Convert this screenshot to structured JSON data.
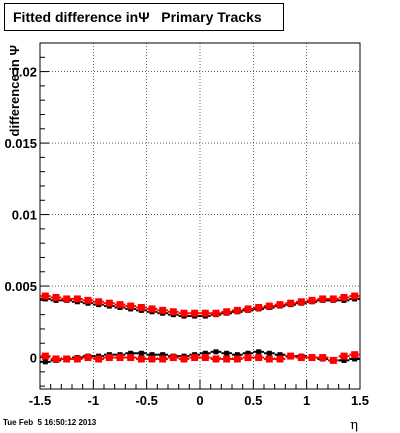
{
  "chart_data": {
    "type": "scatter",
    "title": "Fitted difference inΨ   Primary Tracks",
    "ylabel": "difference in Ψ",
    "xlabel": "η",
    "xlim": [
      -1.5,
      1.5
    ],
    "ylim": [
      -0.0022,
      0.022
    ],
    "xticks": [
      "-1.5",
      "-1",
      "-0.5",
      "0",
      "0.5",
      "1",
      "1.5"
    ],
    "xtick_values": [
      -1.5,
      -1,
      -0.5,
      0,
      0.5,
      1,
      1.5
    ],
    "yticks": [
      "0",
      "0.005",
      "0.01",
      "0.015",
      "0.02"
    ],
    "ytick_values": [
      0,
      0.005,
      0.01,
      0.015,
      0.02
    ],
    "grid": true,
    "series": [
      {
        "color": "#000000",
        "marker": "square-small",
        "x": [
          -1.45,
          -1.35,
          -1.25,
          -1.15,
          -1.05,
          -0.95,
          -0.85,
          -0.75,
          -0.65,
          -0.55,
          -0.45,
          -0.35,
          -0.25,
          -0.15,
          -0.05,
          0.05,
          0.15,
          0.25,
          0.35,
          0.45,
          0.55,
          0.65,
          0.75,
          0.85,
          0.95,
          1.05,
          1.15,
          1.25,
          1.35,
          1.45
        ],
        "y": [
          0.0041,
          0.004,
          0.004,
          0.0039,
          0.0038,
          0.0037,
          0.0036,
          0.0035,
          0.0034,
          0.0033,
          0.0032,
          0.0031,
          0.003,
          0.0029,
          0.0029,
          0.0029,
          0.003,
          0.0031,
          0.0032,
          0.0033,
          0.0034,
          0.0035,
          0.0036,
          0.0037,
          0.0038,
          0.0039,
          0.004,
          0.004,
          0.004,
          0.0041
        ]
      },
      {
        "color": "#ff0000",
        "marker": "square",
        "x": [
          -1.45,
          -1.35,
          -1.25,
          -1.15,
          -1.05,
          -0.95,
          -0.85,
          -0.75,
          -0.65,
          -0.55,
          -0.45,
          -0.35,
          -0.25,
          -0.15,
          -0.05,
          0.05,
          0.15,
          0.25,
          0.35,
          0.45,
          0.55,
          0.65,
          0.75,
          0.85,
          0.95,
          1.05,
          1.15,
          1.25,
          1.35,
          1.45
        ],
        "y": [
          0.0043,
          0.0042,
          0.0041,
          0.0041,
          0.004,
          0.0039,
          0.0038,
          0.0037,
          0.0036,
          0.0035,
          0.0034,
          0.0033,
          0.0032,
          0.0031,
          0.0031,
          0.0031,
          0.0031,
          0.0032,
          0.0033,
          0.0034,
          0.0035,
          0.0036,
          0.0037,
          0.0038,
          0.0039,
          0.004,
          0.0041,
          0.0041,
          0.0042,
          0.0043
        ]
      },
      {
        "color": "#000000",
        "marker": "square-small",
        "x": [
          -1.45,
          -1.35,
          -1.25,
          -1.15,
          -1.05,
          -0.95,
          -0.85,
          -0.75,
          -0.65,
          -0.55,
          -0.45,
          -0.35,
          -0.25,
          -0.15,
          -0.05,
          0.05,
          0.15,
          0.25,
          0.35,
          0.45,
          0.55,
          0.65,
          0.75,
          0.85,
          0.95,
          1.05,
          1.15,
          1.25,
          1.35,
          1.45
        ],
        "y": [
          -0.0003,
          -0.0002,
          -0.0001,
          0.0,
          0.0001,
          0.0001,
          0.0002,
          0.0002,
          0.0003,
          0.0003,
          0.0002,
          0.0002,
          0.0001,
          0.0001,
          0.0002,
          0.0003,
          0.0004,
          0.0003,
          0.0002,
          0.0003,
          0.0004,
          0.0003,
          0.0002,
          0.0001,
          0.0001,
          0.0,
          -0.0001,
          -0.0002,
          -0.0002,
          -0.0001
        ]
      },
      {
        "color": "#ff0000",
        "marker": "square",
        "x": [
          -1.45,
          -1.35,
          -1.25,
          -1.15,
          -1.05,
          -0.95,
          -0.85,
          -0.75,
          -0.65,
          -0.55,
          -0.45,
          -0.35,
          -0.25,
          -0.15,
          -0.05,
          0.05,
          0.15,
          0.25,
          0.35,
          0.45,
          0.55,
          0.65,
          0.75,
          0.85,
          0.95,
          1.05,
          1.15,
          1.25,
          1.35,
          1.45
        ],
        "y": [
          0.0001,
          -0.0001,
          -0.0001,
          -0.0001,
          0.0,
          -0.0001,
          0.0,
          0.0,
          0.0,
          -0.0001,
          -0.0001,
          -0.0001,
          0.0,
          -0.0001,
          0.0,
          0.0,
          -0.0001,
          -0.0001,
          -0.0001,
          0.0,
          0.0,
          -0.0001,
          -0.0001,
          0.0001,
          0.0,
          0.0,
          0.0,
          -0.0002,
          0.0001,
          0.0002
        ]
      }
    ]
  },
  "footer": "Tue Feb  5 16:50:12 2013"
}
